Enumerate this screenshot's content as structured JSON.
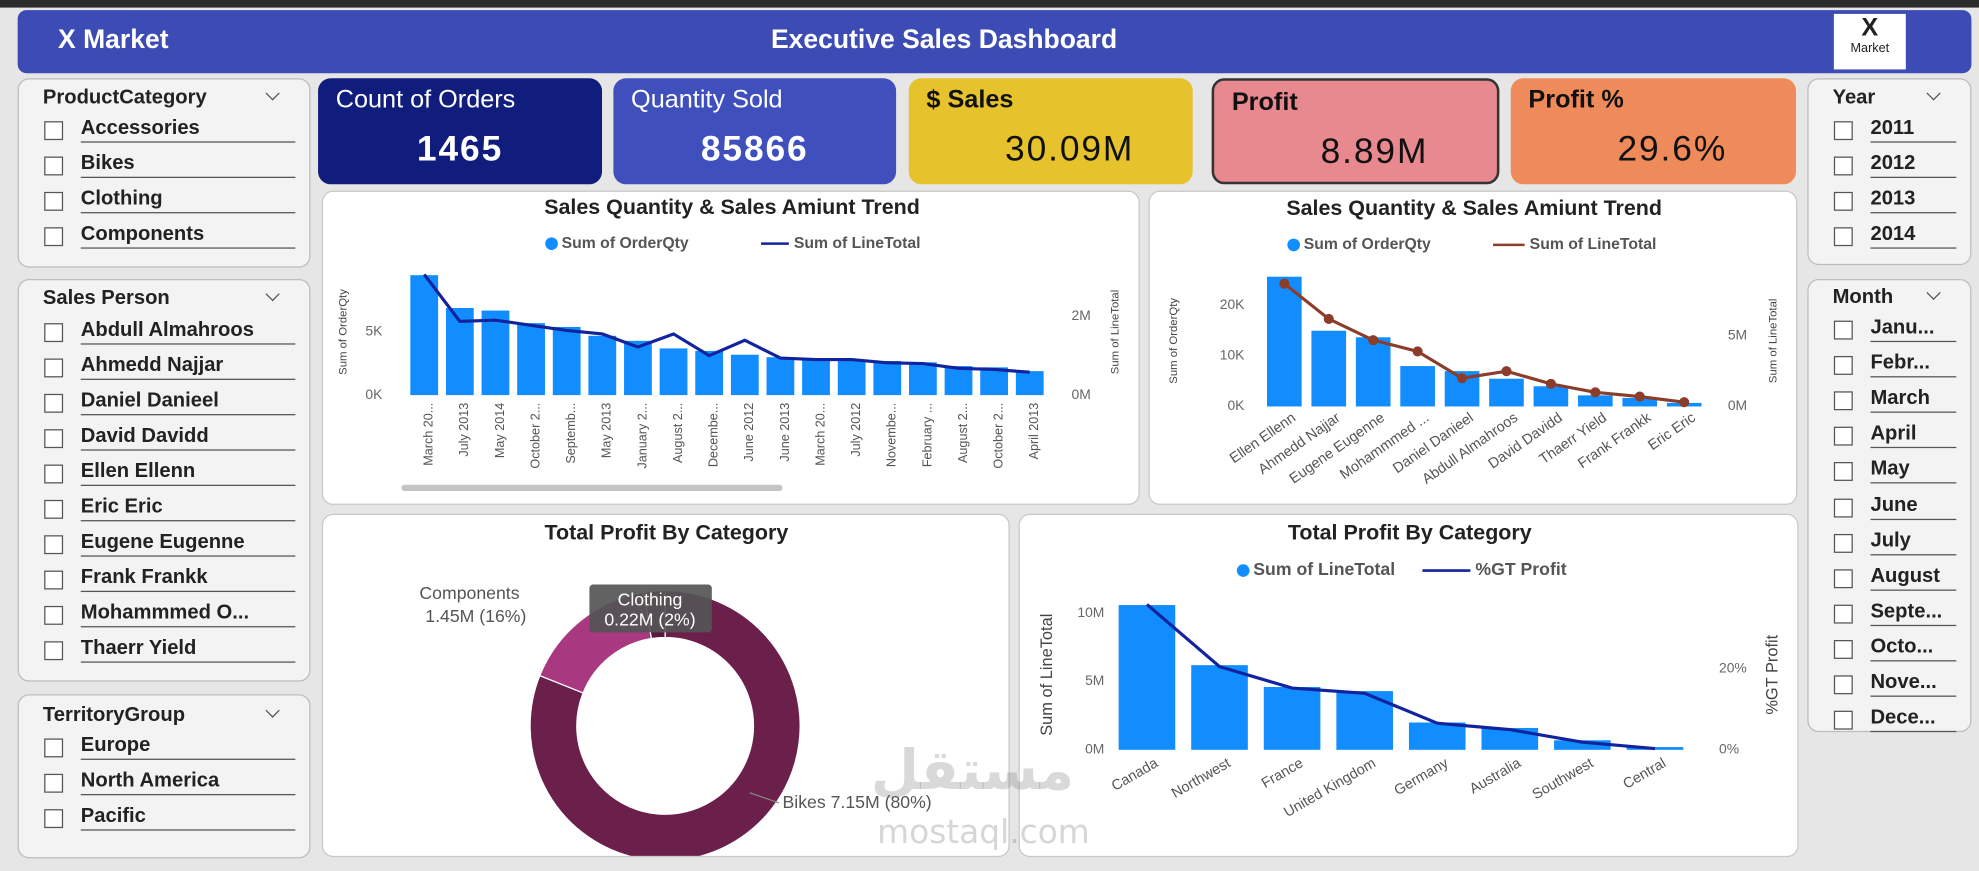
{
  "header": {
    "brand": "X Market",
    "title": "Executive Sales Dashboard",
    "logo": {
      "mark": "X",
      "text": "Market"
    }
  },
  "kpis": [
    {
      "label": "Count of Orders",
      "value": 1465
    },
    {
      "label": "Quantity Sold",
      "value": 85866
    },
    {
      "label": "$ Sales",
      "value": "30.09M"
    },
    {
      "label": "Profit",
      "value": "8.89M"
    },
    {
      "label": "Profit %",
      "value": "29.6%"
    }
  ],
  "slicers": [
    {
      "title": "ProductCategory",
      "items": [
        "Accessories",
        "Bikes",
        "Clothing",
        "Components"
      ]
    },
    {
      "title": "Sales Person",
      "items": [
        "Abdull Almahroos",
        "Ahmedd Najjar",
        "Daniel Danieel",
        "David Davidd",
        "Ellen Ellenn",
        "Eric Eric",
        "Eugene Eugenne",
        "Frank Frankk",
        "Mohammmed O...",
        "Thaerr Yield"
      ]
    },
    {
      "title": "TerritoryGroup",
      "items": [
        "Europe",
        "North America",
        "Pacific"
      ]
    },
    {
      "title": "Year",
      "items": [
        "2011",
        "2012",
        "2013",
        "2014"
      ]
    },
    {
      "title": "Month",
      "items": [
        "Janu...",
        "Febr...",
        "March",
        "April",
        "May",
        "June",
        "July",
        "August",
        "Septe...",
        "Octo...",
        "Nove...",
        "Dece..."
      ]
    }
  ],
  "watermark": [
    "مستقل",
    "mostaql.com"
  ],
  "chart_data": [
    {
      "type": "combo",
      "title": "Sales Quantity & Sales Amiunt Trend",
      "grid": false,
      "markers": false,
      "categories": [
        "March 20...",
        "July 2013",
        "May 2014",
        "October 2...",
        "Septemb...",
        "May 2013",
        "January 2...",
        "August 2...",
        "Decembe...",
        "June 2012",
        "June 2013",
        "March 20...",
        "July 2012",
        "Novembe...",
        "February ...",
        "August 2...",
        "October 2...",
        "April 2013"
      ],
      "series": [
        {
          "name": "Sum of OrderQty",
          "type": "bar",
          "color": "#118dff",
          "values": [
            9500,
            6900,
            6700,
            5700,
            5400,
            4700,
            4300,
            3700,
            3500,
            3200,
            3000,
            2800,
            2800,
            2700,
            2600,
            2300,
            2200,
            1900
          ]
        },
        {
          "name": "Sum of LineTotal",
          "type": "line",
          "axis": "y2",
          "color": "#12239e",
          "values": [
            3060000,
            1870000,
            1900000,
            1770000,
            1640000,
            1550000,
            1220000,
            1550000,
            1000000,
            1390000,
            940000,
            900000,
            900000,
            820000,
            800000,
            680000,
            650000,
            580000
          ]
        }
      ],
      "ylabel": "Sum of OrderQty",
      "y2label": "Sum of LineTotal",
      "ylim": [
        0,
        10000
      ],
      "yticks": [
        {
          "value": 0,
          "label": "0K"
        },
        {
          "value": 5000,
          "label": "5K"
        }
      ],
      "y2lim": [
        0,
        3200000
      ],
      "y2ticks": [
        {
          "value": 0,
          "label": "0M"
        },
        {
          "value": 2000000,
          "label": "2M"
        }
      ]
    },
    {
      "type": "combo",
      "title": "Sales Quantity & Sales Amiunt Trend",
      "grid": false,
      "markers": true,
      "categories": [
        "Ellen Ellenn",
        "Ahmedd Najjar",
        "Eugene Eugenne",
        "Mohammmed ...",
        "Daniel Danieel",
        "Abdull Almahroos",
        "David Davidd",
        "Thaerr Yield",
        "Frank Frankk",
        "Eric Eric"
      ],
      "series": [
        {
          "name": "Sum of OrderQty",
          "type": "bar",
          "color": "#118dff",
          "values": [
            25700,
            15000,
            13700,
            8000,
            7000,
            5500,
            4000,
            2200,
            1700,
            700
          ]
        },
        {
          "name": "Sum of LineTotal",
          "type": "line",
          "axis": "y2",
          "color": "#8b3c2a",
          "values": [
            8700000,
            6200000,
            4700000,
            3900000,
            2000000,
            2500000,
            1600000,
            1000000,
            700000,
            300000
          ]
        }
      ],
      "ylabel": "Sum of OrderQty",
      "y2label": "Sum of LineTotal",
      "ylim": [
        0,
        26000
      ],
      "yticks": [
        {
          "value": 0,
          "label": "0K"
        },
        {
          "value": 10000,
          "label": "10K"
        },
        {
          "value": 20000,
          "label": "20K"
        }
      ],
      "y2lim": [
        0,
        9300000
      ],
      "y2ticks": [
        {
          "value": 0,
          "label": "0M"
        },
        {
          "value": 5000000,
          "label": "5M"
        }
      ]
    },
    {
      "type": "donut",
      "title": "Total Profit By Category",
      "categories": [
        "Bikes",
        "Components",
        "Clothing"
      ],
      "values": [
        7150000,
        1450000,
        220000
      ],
      "value_labels": [
        "7.15M (80%)",
        "1.45M (16%)",
        "0.22M (2%)"
      ],
      "colors": [
        "#6b1f4b",
        "#a8387f",
        "#5a1a40"
      ]
    },
    {
      "type": "combo",
      "title": "Total Profit By Category",
      "grid": false,
      "markers": false,
      "categories": [
        "Canada",
        "Northwest",
        "France",
        "United Kingdom",
        "Germany",
        "Australia",
        "Southwest",
        "Central"
      ],
      "series": [
        {
          "name": "Sum of LineTotal",
          "type": "bar",
          "color": "#118dff",
          "values": [
            10600000,
            6200000,
            4600000,
            4300000,
            2000000,
            1600000,
            700000,
            200000
          ]
        },
        {
          "name": "%GT Profit",
          "type": "line",
          "axis": "y2",
          "color": "#12239e",
          "values": [
            36,
            20.6,
            15.3,
            14,
            6.6,
            5,
            1.9,
            0.3
          ]
        }
      ],
      "ylabel": "Sum of LineTotal",
      "y2label": "%GT Profit",
      "ylim": [
        0,
        11000000
      ],
      "yticks": [
        {
          "value": 0,
          "label": "0M"
        },
        {
          "value": 5000000,
          "label": "5M"
        },
        {
          "value": 10000000,
          "label": "10M"
        }
      ],
      "y2lim": [
        0,
        37.2
      ],
      "y2ticks": [
        {
          "value": 0,
          "label": "0%"
        },
        {
          "value": 20,
          "label": "20%"
        }
      ]
    }
  ]
}
